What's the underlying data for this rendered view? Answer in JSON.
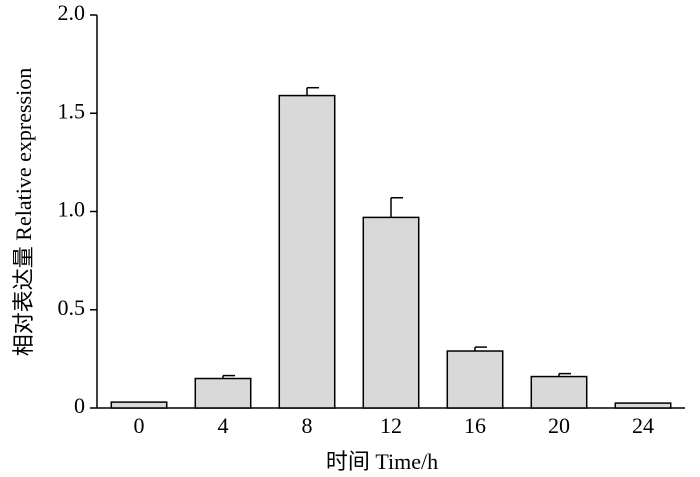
{
  "chart_data": {
    "type": "bar",
    "x_label": "时间 Time/h",
    "y_label": "相对表达量 Relative expression",
    "categories": [
      "0",
      "4",
      "8",
      "12",
      "16",
      "20",
      "24"
    ],
    "values": [
      0.03,
      0.15,
      1.59,
      0.97,
      0.29,
      0.16,
      0.025
    ],
    "errors": [
      0,
      0.015,
      0.04,
      0.1,
      0.02,
      0.015,
      0
    ],
    "color": "#d9d9d9",
    "ylim": [
      0,
      2.0
    ],
    "yticks": [
      0,
      0.5,
      {
        "value": 1.0,
        "label": "1.0"
      },
      1.5,
      {
        "value": 2.0,
        "label": "2.0"
      }
    ]
  }
}
